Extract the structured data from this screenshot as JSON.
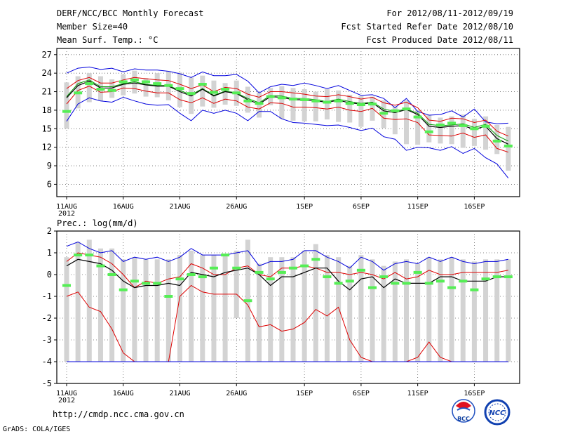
{
  "header": {
    "title": "DERF/NCC/BCC Monthly Forecast",
    "member_size": "Member Size=40",
    "variable": "Mean Surf. Temp.: °C",
    "forecast_range": "For 2012/08/11-2012/09/19",
    "fcst_started": "Fcst Started Refer Date 2012/08/10",
    "fcst_produced": "Fcst Produced Date 2012/08/11"
  },
  "footer": {
    "url": "http://cmdp.ncc.cma.gov.cn",
    "grads_credit": "GrADS: COLA/IGES",
    "logo_bcc_text": "BCC",
    "logo_ncc_text": "NCC"
  },
  "colors": {
    "spread_line": "#0000dd",
    "band_line": "#dd0000",
    "band_mid": "#009900",
    "mean_line": "#000000",
    "box": "#d3d3d3",
    "obs_mark": "#55ee55"
  },
  "chart_data": [
    {
      "type": "line",
      "title": "Mean Surf. Temp.: °C",
      "x_days": 40,
      "xtick_labels": [
        "11AUG",
        "16AUG",
        "21AUG",
        "26AUG",
        "1SEP",
        "6SEP",
        "11SEP",
        "16SEP"
      ],
      "xtick_days": [
        0,
        5,
        10,
        15,
        21,
        26,
        31,
        36
      ],
      "year_label": "2012",
      "yticks": [
        6,
        9,
        12,
        15,
        18,
        21,
        24,
        27
      ],
      "ylim": [
        4,
        28
      ],
      "series": [
        {
          "name": "max",
          "values": [
            24.0,
            24.8,
            25.0,
            24.6,
            24.8,
            24.2,
            24.7,
            24.5,
            24.5,
            24.3,
            23.9,
            23.3,
            24.2,
            23.6,
            23.6,
            23.8,
            22.7,
            20.8,
            21.8,
            22.2,
            22.0,
            22.4,
            22.0,
            21.5,
            22.0,
            21.2,
            20.4,
            20.5,
            19.9,
            18.4,
            19.9,
            17.8,
            17.2,
            17.3,
            17.9,
            16.9,
            18.2,
            16.1,
            15.8,
            15.9
          ]
        },
        {
          "name": "upper",
          "values": [
            21.5,
            22.8,
            23.3,
            22.4,
            22.4,
            22.9,
            23.3,
            23.1,
            22.9,
            22.8,
            22.2,
            21.5,
            22.1,
            21.0,
            21.7,
            21.5,
            20.6,
            20.1,
            21.0,
            21.0,
            20.8,
            20.6,
            20.3,
            20.2,
            20.5,
            20.2,
            19.8,
            20.1,
            19.2,
            18.8,
            19.3,
            18.4,
            16.4,
            16.2,
            16.7,
            16.6,
            16.0,
            16.4,
            14.6,
            13.8
          ]
        },
        {
          "name": "middle",
          "values": [
            20.2,
            22.3,
            22.9,
            21.8,
            21.8,
            22.3,
            22.6,
            22.2,
            22.0,
            22.0,
            21.2,
            20.5,
            21.5,
            20.4,
            21.1,
            20.8,
            19.9,
            19.2,
            20.4,
            20.3,
            19.9,
            19.9,
            19.7,
            19.4,
            19.8,
            19.4,
            19.1,
            19.3,
            18.2,
            17.8,
            18.2,
            17.5,
            15.7,
            15.5,
            15.6,
            15.8,
            15.2,
            15.7,
            13.9,
            13.0
          ]
        },
        {
          "name": "mean",
          "values": [
            20.0,
            22.0,
            22.7,
            21.6,
            21.6,
            22.2,
            22.4,
            22.1,
            21.9,
            21.9,
            21.0,
            20.3,
            21.4,
            20.3,
            21.0,
            20.7,
            19.7,
            19.0,
            20.2,
            20.1,
            19.7,
            19.7,
            19.5,
            19.3,
            19.6,
            19.2,
            19.0,
            19.2,
            17.9,
            17.6,
            18.1,
            17.3,
            15.4,
            15.2,
            15.4,
            15.5,
            14.9,
            15.4,
            13.4,
            12.5
          ]
        },
        {
          "name": "lower",
          "values": [
            19.0,
            21.2,
            21.9,
            20.9,
            21.0,
            21.6,
            21.5,
            21.1,
            20.8,
            20.8,
            19.7,
            19.2,
            20.0,
            19.1,
            19.8,
            19.5,
            18.5,
            18.2,
            19.2,
            19.1,
            18.5,
            18.5,
            18.4,
            18.2,
            18.5,
            18.0,
            17.8,
            18.3,
            16.7,
            16.5,
            16.6,
            16.0,
            14.0,
            13.9,
            13.8,
            14.3,
            13.6,
            14.0,
            11.8,
            11.2
          ]
        },
        {
          "name": "min",
          "values": [
            16.2,
            19.0,
            20.0,
            19.5,
            19.3,
            20.1,
            19.5,
            19.0,
            18.8,
            18.9,
            17.5,
            16.3,
            18.0,
            17.5,
            18.0,
            17.5,
            16.3,
            17.8,
            17.8,
            16.6,
            16.0,
            15.9,
            15.7,
            15.5,
            15.6,
            15.2,
            14.7,
            15.1,
            13.7,
            13.3,
            11.5,
            12.0,
            11.9,
            11.5,
            12.1,
            11.0,
            11.8,
            10.3,
            9.3,
            7.0
          ]
        },
        {
          "name": "obs",
          "values": [
            17.8,
            20.8,
            22.3,
            21.4,
            21.2,
            22.6,
            22.9,
            22.6,
            22.3,
            22.0,
            21.5,
            20.7,
            22.2,
            20.9,
            21.4,
            20.8,
            19.5,
            19.1,
            20.2,
            20.0,
            19.8,
            19.7,
            19.5,
            19.3,
            19.5,
            19.1,
            18.9,
            19.0,
            17.5,
            17.9,
            18.2,
            16.9,
            14.5,
            15.6,
            15.9,
            15.5,
            15.0,
            15.4,
            13.0,
            12.2
          ]
        }
      ],
      "boxes": {
        "upper": [
          22.5,
          23.5,
          24.0,
          23.5,
          23.0,
          23.8,
          24.4,
          23.2,
          24.0,
          24.3,
          24.1,
          23.3,
          23.6,
          22.8,
          22.4,
          22.8,
          21.8,
          20.9,
          21.6,
          21.9,
          21.6,
          21.4,
          21.0,
          21.4,
          21.2,
          20.5,
          20.3,
          20.2,
          19.6,
          18.6,
          19.6,
          18.0,
          17.2,
          16.8,
          17.0,
          17.3,
          16.6,
          17.0,
          15.6,
          15.3
        ],
        "lower": [
          15.0,
          18.3,
          19.3,
          19.5,
          20.0,
          20.4,
          20.7,
          20.2,
          20.1,
          19.6,
          18.5,
          17.4,
          18.6,
          18.4,
          18.9,
          18.7,
          17.6,
          16.8,
          18.8,
          16.6,
          16.3,
          16.2,
          16.2,
          16.5,
          16.1,
          16.0,
          15.3,
          16.3,
          15.1,
          14.1,
          12.5,
          12.4,
          12.8,
          12.6,
          12.5,
          11.9,
          12.2,
          11.6,
          10.9,
          8.2
        ]
      }
    },
    {
      "type": "line",
      "title": "Prec.: log(mm/d)",
      "x_days": 40,
      "xtick_labels": [
        "11AUG",
        "16AUG",
        "21AUG",
        "26AUG",
        "1SEP",
        "6SEP",
        "11SEP",
        "16SEP"
      ],
      "xtick_days": [
        0,
        5,
        10,
        15,
        21,
        26,
        31,
        36
      ],
      "year_label": "2012",
      "yticks": [
        -5,
        -4,
        -3,
        -2,
        -1,
        0,
        1,
        2
      ],
      "ylim": [
        -5,
        2
      ],
      "series": [
        {
          "name": "max",
          "values": [
            1.3,
            1.5,
            1.2,
            1.0,
            1.1,
            0.6,
            0.8,
            0.7,
            0.8,
            0.6,
            0.8,
            1.2,
            0.9,
            0.9,
            0.9,
            1.0,
            1.1,
            0.4,
            0.6,
            0.6,
            0.7,
            1.1,
            1.1,
            0.8,
            0.6,
            0.3,
            0.8,
            0.6,
            0.2,
            0.5,
            0.6,
            0.5,
            0.8,
            0.6,
            0.8,
            0.6,
            0.5,
            0.6,
            0.6,
            0.7
          ]
        },
        {
          "name": "upper",
          "values": [
            0.6,
            1.0,
            0.9,
            0.8,
            0.5,
            0.0,
            -0.6,
            -0.3,
            -0.4,
            -0.2,
            -0.1,
            0.5,
            0.3,
            0.0,
            0.0,
            0.3,
            0.4,
            0.0,
            -0.1,
            0.3,
            0.3,
            0.4,
            0.3,
            0.1,
            0.1,
            0.0,
            0.1,
            0.0,
            -0.2,
            0.1,
            -0.2,
            -0.1,
            0.2,
            0.0,
            0.0,
            0.1,
            0.1,
            0.1,
            0.1,
            0.2
          ]
        },
        {
          "name": "mean",
          "values": [
            0.4,
            0.7,
            0.6,
            0.5,
            0.2,
            -0.3,
            -0.6,
            -0.5,
            -0.5,
            -0.4,
            -0.5,
            0.1,
            0.0,
            -0.1,
            0.1,
            0.2,
            0.3,
            0.0,
            -0.5,
            -0.1,
            -0.1,
            0.1,
            0.3,
            0.3,
            -0.3,
            -0.7,
            -0.2,
            -0.1,
            -0.6,
            -0.2,
            -0.4,
            -0.4,
            -0.4,
            -0.1,
            -0.1,
            -0.3,
            -0.3,
            -0.3,
            -0.1,
            -0.1
          ]
        },
        {
          "name": "lower",
          "values": [
            -1.0,
            -0.8,
            -1.5,
            -1.7,
            -2.5,
            -3.6,
            -4.0,
            -4.0,
            -4.0,
            -4.0,
            -1.0,
            -0.5,
            -0.8,
            -0.9,
            -0.9,
            -0.9,
            -1.4,
            -2.4,
            -2.3,
            -2.6,
            -2.5,
            -2.2,
            -1.6,
            -1.9,
            -1.5,
            -3.0,
            -3.8,
            -4.0,
            -4.0,
            -4.0,
            -4.0,
            -3.8,
            -3.1,
            -3.8,
            -4.0,
            -4.0,
            -4.0,
            -4.0,
            -4.0,
            -4.0
          ]
        },
        {
          "name": "min",
          "values": [
            -4,
            -4,
            -4,
            -4,
            -4,
            -4,
            -4,
            -4,
            -4,
            -4,
            -4,
            -4,
            -4,
            -4,
            -4,
            -4,
            -4,
            -4,
            -4,
            -4,
            -4,
            -4,
            -4,
            -4,
            -4,
            -4,
            -4,
            -4,
            -4,
            -4,
            -4,
            -4,
            -4,
            -4,
            -4,
            -4,
            -4,
            -4,
            -4,
            -4
          ]
        },
        {
          "name": "obs",
          "values": [
            -0.5,
            0.9,
            0.9,
            0.4,
            0.0,
            -0.7,
            -0.3,
            -0.4,
            -0.4,
            -1.0,
            -0.2,
            0.0,
            -0.1,
            0.3,
            0.9,
            0.3,
            -1.2,
            0.1,
            -0.2,
            0.1,
            0.3,
            0.4,
            0.7,
            -0.1,
            -0.4,
            -0.3,
            0.2,
            -0.6,
            -0.1,
            -0.4,
            -0.4,
            0.1,
            -0.4,
            -0.3,
            -0.6,
            -0.3,
            -0.7,
            -0.2,
            -0.1,
            -0.1
          ]
        }
      ],
      "boxes": {
        "upper": [
          0.8,
          1.5,
          1.6,
          1.2,
          1.2,
          0.7,
          0.8,
          0.7,
          0.7,
          0.7,
          0.9,
          1.1,
          0.9,
          0.9,
          0.9,
          1.1,
          1.6,
          0.5,
          0.8,
          0.8,
          0.8,
          1.1,
          1.4,
          0.9,
          0.8,
          0.4,
          0.9,
          0.7,
          0.4,
          0.6,
          0.7,
          0.5,
          0.8,
          0.7,
          0.8,
          0.7,
          0.6,
          0.7,
          0.7,
          0.7
        ],
        "lower": [
          -4,
          -4,
          -4,
          -4,
          -4,
          -4,
          -4,
          -4,
          -4,
          -4,
          -4,
          -4,
          -4,
          -4,
          -4,
          -2,
          -4,
          -4,
          -4,
          -4,
          -4,
          -4,
          -4,
          -4,
          -4,
          -4,
          -4,
          -4,
          -4,
          -4,
          -4,
          -4,
          -4,
          -4,
          -4,
          -4,
          -4,
          -4,
          -4,
          -4
        ]
      }
    }
  ]
}
